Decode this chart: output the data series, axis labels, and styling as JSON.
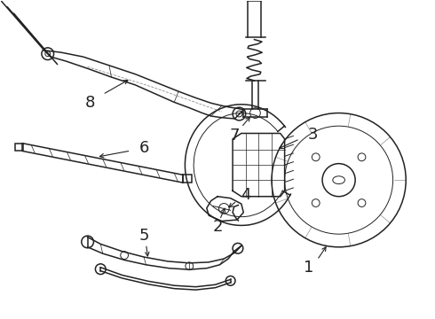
{
  "bg_color": "#ffffff",
  "line_color": "#222222",
  "label_color": "#000000",
  "label_fontsize": 13,
  "figsize": [
    4.9,
    3.6
  ],
  "dpi": 100,
  "xlim": [
    0,
    10
  ],
  "ylim": [
    0,
    7.35
  ]
}
